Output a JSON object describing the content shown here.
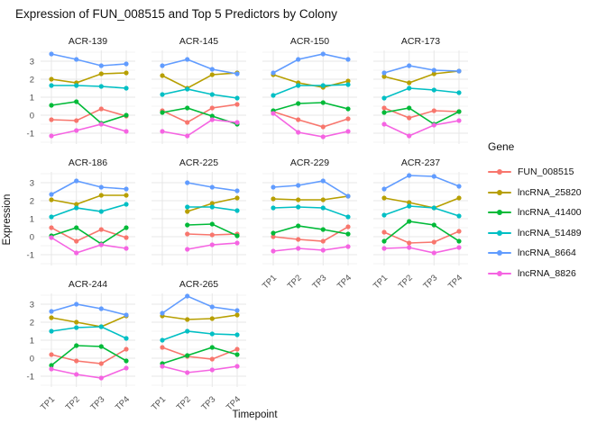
{
  "title": "Expression of FUN_008515 and Top 5 Predictors by Colony",
  "axes": {
    "x_title": "Timepoint",
    "y_title": "Expression",
    "x_ticks": [
      "TP1",
      "TP2",
      "TP3",
      "TP4"
    ],
    "y_ticks": [
      3,
      2,
      1,
      0,
      -1
    ]
  },
  "legend": {
    "title": "Gene",
    "entries": [
      "FUN_008515",
      "lncRNA_25820",
      "lncRNA_41400",
      "lncRNA_51489",
      "lncRNA_8664",
      "lncRNA_8826"
    ]
  },
  "chart_data": {
    "type": "line",
    "facet_by": "Colony",
    "x": [
      "TP1",
      "TP2",
      "TP3",
      "TP4"
    ],
    "xlabel": "Timepoint",
    "ylabel": "Expression",
    "ylim": [
      -1.6,
      3.6
    ],
    "y_major_gridlines": [
      -1,
      0,
      1,
      2,
      3
    ],
    "y_minor_gridlines": [
      -1.5,
      -0.5,
      0.5,
      1.5,
      2.5,
      3.5
    ],
    "grid": true,
    "legend_position": "right",
    "genes": [
      {
        "name": "FUN_008515",
        "color": "#F8766D"
      },
      {
        "name": "lncRNA_25820",
        "color": "#B79F00"
      },
      {
        "name": "lncRNA_41400",
        "color": "#00BA38"
      },
      {
        "name": "lncRNA_51489",
        "color": "#00BFC4"
      },
      {
        "name": "lncRNA_8664",
        "color": "#619CFF"
      },
      {
        "name": "lncRNA_8826",
        "color": "#F564E2"
      }
    ],
    "facets": [
      {
        "name": "ACR-139",
        "values": {
          "FUN_008515": [
            -0.25,
            -0.3,
            0.35,
            -0.05
          ],
          "lncRNA_25820": [
            2.0,
            1.8,
            2.3,
            2.35
          ],
          "lncRNA_41400": [
            0.55,
            0.75,
            -0.45,
            0.0
          ],
          "lncRNA_51489": [
            1.65,
            1.65,
            1.6,
            1.5
          ],
          "lncRNA_8664": [
            3.4,
            3.1,
            2.75,
            2.85
          ],
          "lncRNA_8826": [
            -1.15,
            -0.85,
            -0.5,
            -0.9
          ]
        }
      },
      {
        "name": "ACR-145",
        "values": {
          "FUN_008515": [
            0.25,
            -0.4,
            0.4,
            0.6
          ],
          "lncRNA_25820": [
            2.2,
            1.5,
            2.25,
            2.35
          ],
          "lncRNA_41400": [
            0.15,
            0.4,
            -0.05,
            -0.5
          ],
          "lncRNA_51489": [
            1.15,
            1.45,
            1.15,
            0.95
          ],
          "lncRNA_8664": [
            2.75,
            3.1,
            2.55,
            2.3
          ],
          "lncRNA_8826": [
            -0.9,
            -1.15,
            -0.25,
            -0.4
          ]
        }
      },
      {
        "name": "ACR-150",
        "values": {
          "FUN_008515": [
            0.2,
            -0.25,
            -0.65,
            -0.2
          ],
          "lncRNA_25820": [
            2.25,
            1.8,
            1.55,
            1.9
          ],
          "lncRNA_41400": [
            0.25,
            0.65,
            0.7,
            0.35
          ],
          "lncRNA_51489": [
            1.1,
            1.65,
            1.65,
            1.7
          ],
          "lncRNA_8664": [
            2.35,
            3.1,
            3.4,
            3.1
          ],
          "lncRNA_8826": [
            0.1,
            -0.95,
            -1.2,
            -0.9
          ]
        }
      },
      {
        "name": "ACR-173",
        "values": {
          "FUN_008515": [
            0.4,
            -0.15,
            0.25,
            0.2
          ],
          "lncRNA_25820": [
            2.15,
            1.8,
            2.3,
            2.45
          ],
          "lncRNA_41400": [
            0.15,
            0.4,
            -0.5,
            0.2
          ],
          "lncRNA_51489": [
            0.95,
            1.5,
            1.4,
            1.25
          ],
          "lncRNA_8664": [
            2.35,
            2.75,
            2.5,
            2.45
          ],
          "lncRNA_8826": [
            -0.5,
            -1.15,
            -0.55,
            -0.3
          ]
        }
      },
      {
        "name": "ACR-186",
        "values": {
          "FUN_008515": [
            0.5,
            -0.25,
            0.4,
            -0.05
          ],
          "lncRNA_25820": [
            2.05,
            1.8,
            2.3,
            2.3
          ],
          "lncRNA_41400": [
            0.05,
            0.5,
            -0.4,
            0.5
          ],
          "lncRNA_51489": [
            1.1,
            1.6,
            1.4,
            1.8
          ],
          "lncRNA_8664": [
            2.35,
            3.1,
            2.75,
            2.65
          ],
          "lncRNA_8826": [
            -0.05,
            -0.9,
            -0.45,
            -0.65
          ]
        }
      },
      {
        "name": "ACR-225",
        "values": {
          "FUN_008515": [
            null,
            0.15,
            0.1,
            0.15
          ],
          "lncRNA_25820": [
            null,
            1.4,
            1.85,
            2.15
          ],
          "lncRNA_41400": [
            null,
            0.65,
            0.7,
            0.05
          ],
          "lncRNA_51489": [
            null,
            1.65,
            1.65,
            1.45
          ],
          "lncRNA_8664": [
            null,
            3.0,
            2.75,
            2.55
          ],
          "lncRNA_8826": [
            null,
            -0.7,
            -0.45,
            -0.35
          ]
        }
      },
      {
        "name": "ACR-229",
        "values": {
          "FUN_008515": [
            0.0,
            -0.15,
            -0.25,
            0.55
          ],
          "lncRNA_25820": [
            2.1,
            2.05,
            2.05,
            2.25
          ],
          "lncRNA_41400": [
            0.2,
            0.6,
            0.4,
            0.15
          ],
          "lncRNA_51489": [
            1.6,
            1.65,
            1.6,
            1.1
          ],
          "lncRNA_8664": [
            2.75,
            2.85,
            3.1,
            2.25
          ],
          "lncRNA_8826": [
            -0.8,
            -0.65,
            -0.75,
            -0.55
          ]
        }
      },
      {
        "name": "ACR-237",
        "values": {
          "FUN_008515": [
            0.25,
            -0.35,
            -0.3,
            0.3
          ],
          "lncRNA_25820": [
            2.15,
            1.9,
            1.6,
            2.15
          ],
          "lncRNA_41400": [
            -0.25,
            0.85,
            0.65,
            -0.25
          ],
          "lncRNA_51489": [
            1.2,
            1.7,
            1.6,
            1.15
          ],
          "lncRNA_8664": [
            2.65,
            3.4,
            3.35,
            2.8
          ],
          "lncRNA_8826": [
            -0.65,
            -0.6,
            -0.9,
            -0.6
          ]
        }
      },
      {
        "name": "ACR-244",
        "values": {
          "FUN_008515": [
            0.2,
            -0.15,
            -0.3,
            0.5
          ],
          "lncRNA_25820": [
            2.25,
            2.0,
            1.75,
            2.35
          ],
          "lncRNA_41400": [
            -0.4,
            0.7,
            0.65,
            -0.15
          ],
          "lncRNA_51489": [
            1.5,
            1.7,
            1.75,
            1.1
          ],
          "lncRNA_8664": [
            2.6,
            3.0,
            2.75,
            2.4
          ],
          "lncRNA_8826": [
            -0.6,
            -0.9,
            -1.1,
            -0.55
          ]
        }
      },
      {
        "name": "ACR-265",
        "values": {
          "FUN_008515": [
            0.6,
            0.1,
            -0.05,
            0.5
          ],
          "lncRNA_25820": [
            2.35,
            2.15,
            2.2,
            2.4
          ],
          "lncRNA_41400": [
            -0.3,
            0.15,
            0.6,
            0.2
          ],
          "lncRNA_51489": [
            1.0,
            1.5,
            1.35,
            1.3
          ],
          "lncRNA_8664": [
            2.5,
            3.45,
            2.85,
            2.65
          ],
          "lncRNA_8826": [
            -0.45,
            -0.8,
            -0.65,
            -0.45
          ]
        }
      }
    ]
  },
  "style_colors": {
    "grid_major": "#E7E7E7",
    "grid_minor": "#F3F3F3",
    "tick_text": "#4d4d4d"
  }
}
